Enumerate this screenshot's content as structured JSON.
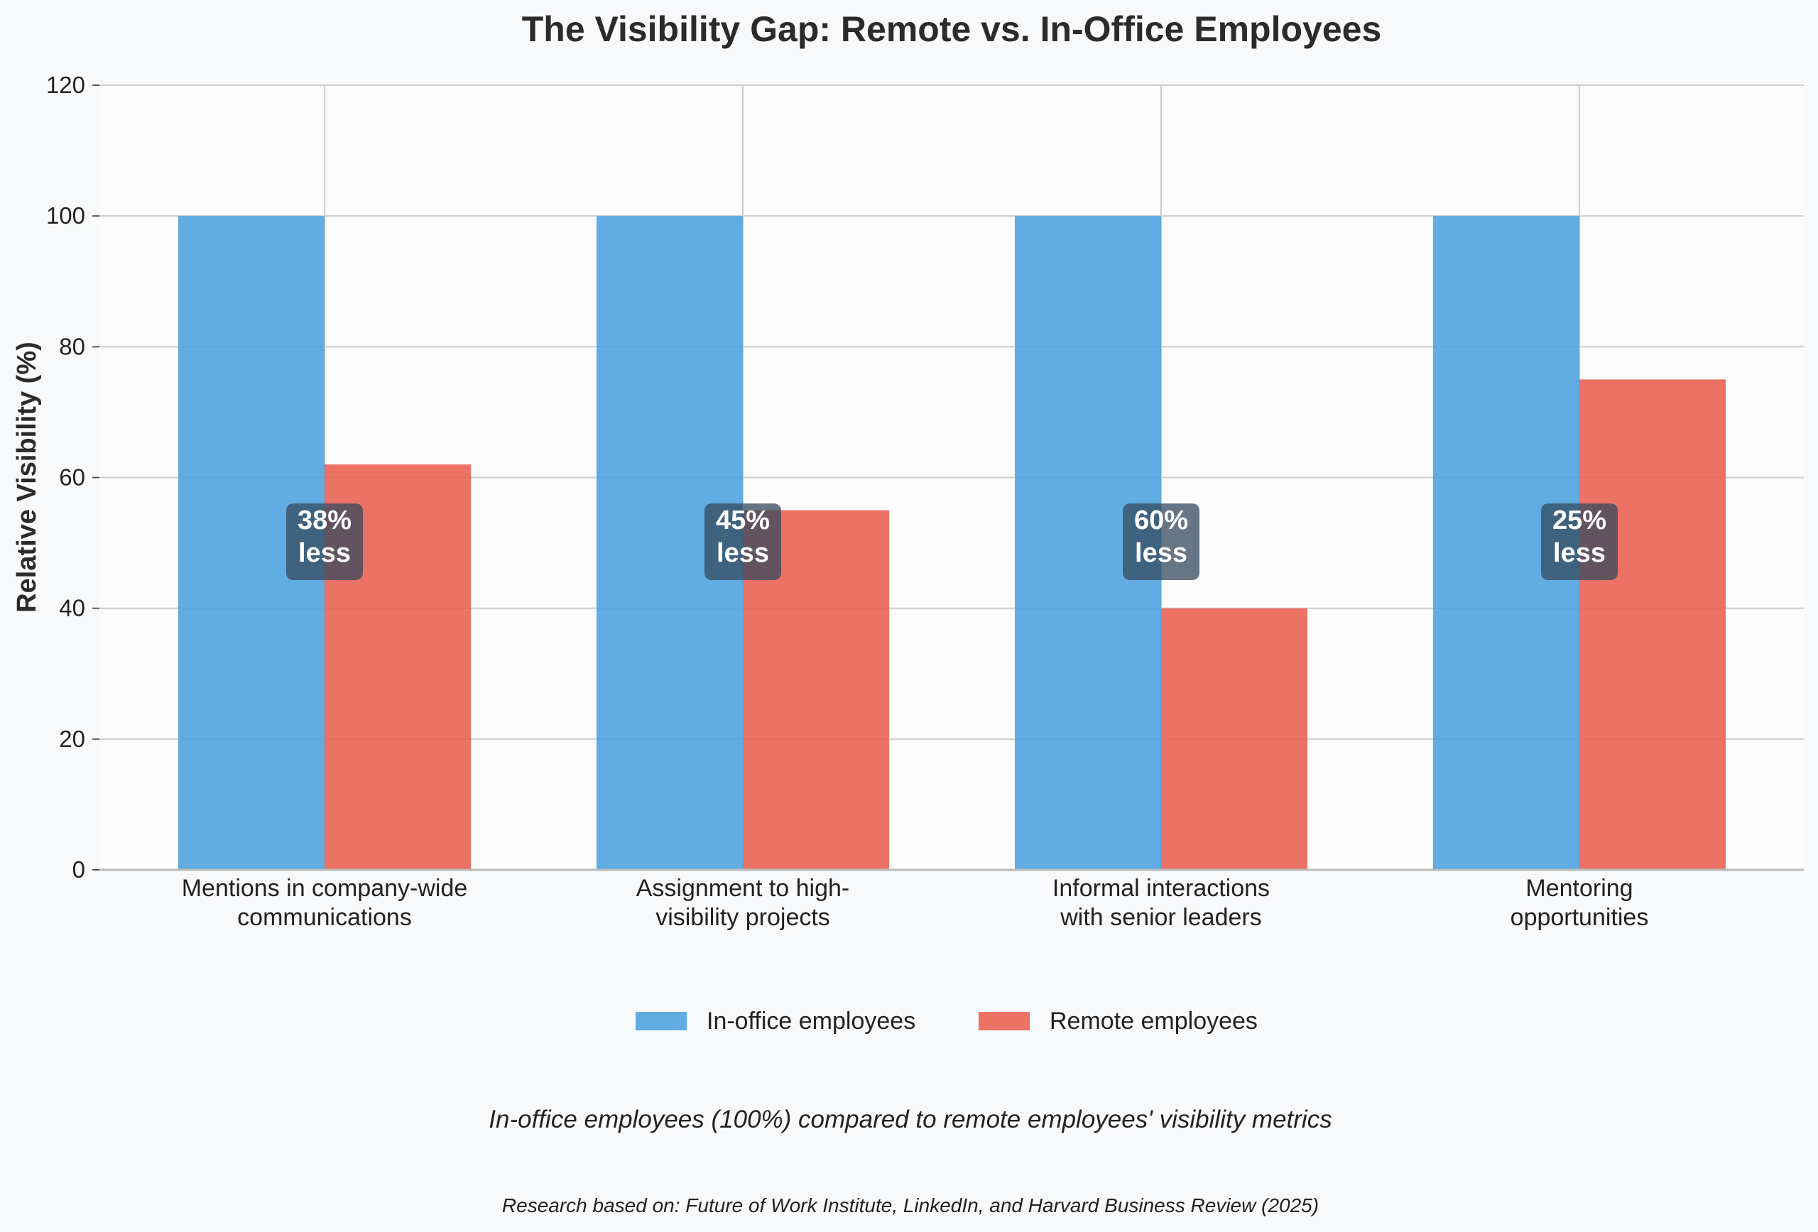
{
  "chart_data": {
    "type": "bar",
    "title": "The Visibility Gap: Remote vs. In-Office Employees",
    "ylabel": "Relative Visibility (%)",
    "xlabel": "",
    "ylim": [
      0,
      120
    ],
    "yticks": [
      "0",
      "20",
      "40",
      "60",
      "80",
      "100",
      "120"
    ],
    "grid": true,
    "categories": [
      [
        "Mentions in company-wide",
        "communications"
      ],
      [
        "Assignment to high-",
        "visibility projects"
      ],
      [
        "Informal interactions",
        "with senior leaders"
      ],
      [
        "Mentoring",
        "opportunities"
      ]
    ],
    "series": [
      {
        "name": "In-office employees",
        "values": [
          100,
          100,
          100,
          100
        ],
        "color": "#4fa3e0"
      },
      {
        "name": "Remote employees",
        "values": [
          62,
          55,
          40,
          75
        ],
        "color": "#ea6354"
      }
    ],
    "annotations": [
      [
        "38%",
        "less"
      ],
      [
        "45%",
        "less"
      ],
      [
        "60%",
        "less"
      ],
      [
        "25%",
        "less"
      ]
    ],
    "annotation_color": "#34495e",
    "legend_position": "bottom-center",
    "subtitle": "In-office employees (100%) compared to remote employees' visibility metrics",
    "source": "Research based on: Future of Work Institute, LinkedIn, and Harvard Business Review (2025)"
  }
}
